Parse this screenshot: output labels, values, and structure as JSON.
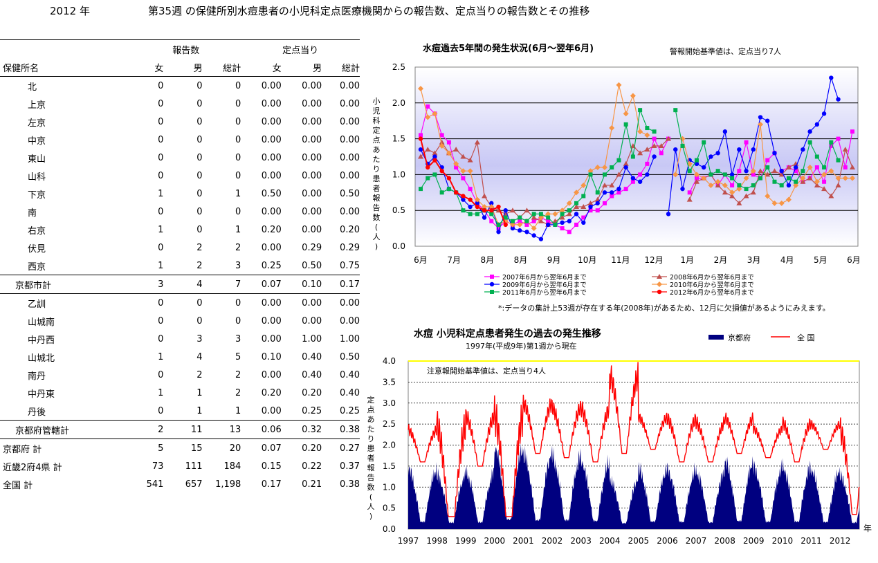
{
  "header": {
    "year": "2012 年",
    "title": "第35週 の保健所別水痘患者の小児科定点医療機関からの報告数、定点当りの報告数とその推移"
  },
  "table": {
    "group_headers": {
      "reports": "報告数",
      "per_site": "定点当り"
    },
    "columns": [
      "保健所名",
      "女",
      "男",
      "総計",
      "女",
      "男",
      "総計"
    ],
    "rows": [
      {
        "name": "北",
        "indent": 2,
        "v": [
          "0",
          "0",
          "0",
          "0.00",
          "0.00",
          "0.00"
        ]
      },
      {
        "name": "上京",
        "indent": 2,
        "v": [
          "0",
          "0",
          "0",
          "0.00",
          "0.00",
          "0.00"
        ]
      },
      {
        "name": "左京",
        "indent": 2,
        "v": [
          "0",
          "0",
          "0",
          "0.00",
          "0.00",
          "0.00"
        ]
      },
      {
        "name": "中京",
        "indent": 2,
        "v": [
          "0",
          "0",
          "0",
          "0.00",
          "0.00",
          "0.00"
        ]
      },
      {
        "name": "東山",
        "indent": 2,
        "v": [
          "0",
          "0",
          "0",
          "0.00",
          "0.00",
          "0.00"
        ]
      },
      {
        "name": "山科",
        "indent": 2,
        "v": [
          "0",
          "0",
          "0",
          "0.00",
          "0.00",
          "0.00"
        ]
      },
      {
        "name": "下京",
        "indent": 2,
        "v": [
          "1",
          "0",
          "1",
          "0.50",
          "0.00",
          "0.50"
        ]
      },
      {
        "name": "南",
        "indent": 2,
        "v": [
          "0",
          "0",
          "0",
          "0.00",
          "0.00",
          "0.00"
        ]
      },
      {
        "name": "右京",
        "indent": 2,
        "v": [
          "1",
          "0",
          "1",
          "0.20",
          "0.00",
          "0.20"
        ]
      },
      {
        "name": "伏見",
        "indent": 2,
        "v": [
          "0",
          "2",
          "2",
          "0.00",
          "0.29",
          "0.29"
        ]
      },
      {
        "name": "西京",
        "indent": 2,
        "v": [
          "1",
          "2",
          "3",
          "0.25",
          "0.50",
          "0.75"
        ]
      },
      {
        "name": "京都市計",
        "indent": 1,
        "v": [
          "3",
          "4",
          "7",
          "0.07",
          "0.10",
          "0.17"
        ],
        "border": "both"
      },
      {
        "name": "乙訓",
        "indent": 2,
        "v": [
          "0",
          "0",
          "0",
          "0.00",
          "0.00",
          "0.00"
        ]
      },
      {
        "name": "山城南",
        "indent": 2,
        "v": [
          "0",
          "0",
          "0",
          "0.00",
          "0.00",
          "0.00"
        ]
      },
      {
        "name": "中丹西",
        "indent": 2,
        "v": [
          "0",
          "3",
          "3",
          "0.00",
          "1.00",
          "1.00"
        ]
      },
      {
        "name": "山城北",
        "indent": 2,
        "v": [
          "1",
          "4",
          "5",
          "0.10",
          "0.40",
          "0.50"
        ]
      },
      {
        "name": "南丹",
        "indent": 2,
        "v": [
          "0",
          "2",
          "2",
          "0.00",
          "0.40",
          "0.40"
        ]
      },
      {
        "name": "中丹東",
        "indent": 2,
        "v": [
          "1",
          "1",
          "2",
          "0.20",
          "0.20",
          "0.40"
        ]
      },
      {
        "name": "丹後",
        "indent": 2,
        "v": [
          "0",
          "1",
          "1",
          "0.00",
          "0.25",
          "0.25"
        ]
      },
      {
        "name": "京都府管轄計",
        "indent": 1,
        "v": [
          "2",
          "11",
          "13",
          "0.06",
          "0.32",
          "0.38"
        ],
        "border": "both"
      },
      {
        "name": "京都府 計",
        "indent": 0,
        "v": [
          "5",
          "15",
          "20",
          "0.07",
          "0.20",
          "0.27"
        ]
      },
      {
        "name": "近畿2府4県 計",
        "indent": 0,
        "v": [
          "73",
          "111",
          "184",
          "0.15",
          "0.22",
          "0.37"
        ]
      },
      {
        "name": "全国 計",
        "indent": 0,
        "v": [
          "541",
          "657",
          "1,198",
          "0.17",
          "0.21",
          "0.38"
        ]
      }
    ]
  },
  "chart1": {
    "title": "水痘過去5年間の発生状況(6月～翌年6月)",
    "note": "警報開始基準値は、定点当り7人",
    "footnote": "*:データの集計上53週が存在する年(2008年)があるため、12月に欠損値があるようにみえます。"
  },
  "chart2": {
    "title": "水痘 小児科定点患者発生の過去の発生推移",
    "subtitle": "1997年(平成9年)第1週から現在",
    "note": "注意報開始基準値は、定点当り4人"
  },
  "chart_data": [
    {
      "type": "line",
      "title": "水痘過去5年間の発生状況(6月～翌年6月)",
      "ylabel": "小児科定点あたり患者報告数(人)",
      "ylim": [
        0,
        2.5
      ],
      "yticks": [
        "0.0",
        "0.5",
        "1.0",
        "1.5",
        "2.0",
        "2.5"
      ],
      "xticks": [
        "6月",
        "7月",
        "8月",
        "8月",
        "9月",
        "10月",
        "11月",
        "12月",
        "1月",
        "2月",
        "3月",
        "4月",
        "5月",
        "6月"
      ],
      "grid": true,
      "legend_position": "bottom",
      "series": [
        {
          "name": "2007年6月から翌年6月まで",
          "color": "#ff00ff",
          "marker": "square",
          "values": [
            1.55,
            1.95,
            1.85,
            1.55,
            1.45,
            1.1,
            0.95,
            0.8,
            0.6,
            0.5,
            0.35,
            0.25,
            0.35,
            0.3,
            0.35,
            0.3,
            0.35,
            0.4,
            0.35,
            0.3,
            0.25,
            0.2,
            0.3,
            0.4,
            0.5,
            0.5,
            0.6,
            0.7,
            0.75,
            0.8,
            0.9,
            1.0,
            1.15,
            1.5,
            1.3,
            1.5,
            null,
            null,
            0.75,
            0.95,
            0.95,
            1.0,
            0.85,
            1.0,
            0.85,
            1.05,
            1.45,
            1.0,
            0.95,
            1.2,
            1.3,
            1.05,
            1.1,
            1.05,
            0.9,
            0.95,
            1.1,
            0.9,
            1.4,
            1.5,
            1.1,
            1.6
          ]
        },
        {
          "name": "2008年6月から翌年6月まで",
          "color": "#c0504d",
          "marker": "triangle",
          "values": [
            1.25,
            1.35,
            1.3,
            1.45,
            1.3,
            1.35,
            1.25,
            1.2,
            1.45,
            0.7,
            0.55,
            0.5,
            0.45,
            0.5,
            0.4,
            0.5,
            0.4,
            0.35,
            0.3,
            0.35,
            0.4,
            0.45,
            0.55,
            0.55,
            0.6,
            0.65,
            0.85,
            0.85,
            1.0,
            1.15,
            1.4,
            1.3,
            1.35,
            1.4,
            1.4,
            1.5,
            null,
            null,
            0.65,
            0.9,
            0.95,
            1.0,
            0.85,
            0.75,
            0.7,
            0.6,
            0.7,
            0.75,
            1.05,
            1.0,
            1.05,
            1.0,
            1.1,
            1.15,
            0.9,
            0.95,
            0.85,
            0.8,
            0.7,
            0.85,
            1.35,
            1.1
          ]
        },
        {
          "name": "2009年6月から翌年6月まで",
          "color": "#0000ff",
          "marker": "circle",
          "values": [
            1.35,
            1.15,
            1.25,
            1.1,
            0.8,
            0.75,
            0.65,
            0.55,
            0.6,
            0.4,
            0.6,
            0.2,
            0.5,
            0.25,
            0.22,
            0.2,
            0.15,
            0.1,
            0.3,
            0.3,
            0.33,
            0.35,
            0.45,
            0.33,
            0.55,
            0.6,
            0.75,
            0.75,
            0.8,
            1.1,
            0.95,
            0.9,
            1.0,
            1.25,
            null,
            0.45,
            1.35,
            0.8,
            1.2,
            1.15,
            1.1,
            1.25,
            1.3,
            1.6,
            1.0,
            1.35,
            1.05,
            1.35,
            1.8,
            1.75,
            1.3,
            1.05,
            0.85,
            1.1,
            1.35,
            1.6,
            1.7,
            1.85,
            2.35,
            2.05
          ]
        },
        {
          "name": "2010年6月から翌年6月まで",
          "color": "#f79646",
          "marker": "diamond",
          "values": [
            2.2,
            1.8,
            1.85,
            1.4,
            1.3,
            1.15,
            1.05,
            1.05,
            0.65,
            0.55,
            0.55,
            0.3,
            0.35,
            0.3,
            0.3,
            0.35,
            0.25,
            0.4,
            0.45,
            0.45,
            0.5,
            0.6,
            0.75,
            0.85,
            1.05,
            1.1,
            1.1,
            1.65,
            2.25,
            1.85,
            2.1,
            1.6,
            1.55,
            null,
            null,
            null,
            1.0,
            1.5,
            1.15,
            1.0,
            0.95,
            0.85,
            0.9,
            0.85,
            0.75,
            0.8,
            0.95,
            1.05,
            1.7,
            0.7,
            0.6,
            0.6,
            0.65,
            0.85,
            0.95,
            1.1,
            0.9,
            1.0,
            1.05,
            0.95,
            0.95,
            0.95
          ]
        },
        {
          "name": "2011年6月から翌年6月まで",
          "color": "#00b050",
          "marker": "square",
          "values": [
            0.8,
            0.95,
            1.0,
            0.75,
            0.8,
            0.75,
            0.5,
            0.45,
            0.45,
            0.5,
            0.45,
            0.3,
            0.4,
            0.35,
            0.4,
            0.35,
            0.45,
            0.45,
            0.4,
            0.3,
            0.45,
            0.5,
            0.6,
            0.7,
            1.0,
            0.75,
            1.0,
            1.1,
            1.2,
            1.7,
            1.25,
            1.9,
            1.65,
            1.6,
            null,
            null,
            1.9,
            1.4,
            1.05,
            1.2,
            1.45,
            1.0,
            1.05,
            1.0,
            0.95,
            0.85,
            0.8,
            0.85,
            0.95,
            1.1,
            0.9,
            0.85,
            0.95,
            0.9,
            1.05,
            1.45,
            1.25,
            1.1,
            1.45,
            1.2
          ]
        },
        {
          "name": "2012年6月から翌年6月まで",
          "color": "#ff0000",
          "marker": "circle",
          "values": [
            1.5,
            1.1,
            1.2,
            1.05,
            0.95,
            0.75,
            0.7,
            0.65,
            0.55,
            0.5,
            0.5,
            0.55,
            0.3
          ]
        }
      ]
    },
    {
      "type": "area",
      "title": "水痘 小児科定点患者発生の過去の発生推移",
      "ylabel": "定点あたり患者報告数(人)",
      "ylim": [
        0,
        4.0
      ],
      "yticks": [
        "0.0",
        "0.5",
        "1.0",
        "1.5",
        "2.0",
        "2.5",
        "3.0",
        "3.5",
        "4.0"
      ],
      "xticks": [
        "1997",
        "1998",
        "1999",
        "2000",
        "2001",
        "2002",
        "2003",
        "2004",
        "2005",
        "2006",
        "2007",
        "2008",
        "2009",
        "2010",
        "2011",
        "2012"
      ],
      "xunit": "年",
      "x_range": [
        1997.0,
        2012.67
      ],
      "threshold": 4.0,
      "series": [
        {
          "name": "京都府",
          "color": "#000080",
          "yearly_peak": [
            1.7,
            1.5,
            1.6,
            2.3,
            2.1,
            2.05,
            1.9,
            1.4,
            1.7,
            1.65,
            1.6,
            1.9,
            1.7,
            1.75,
            1.65,
            1.5
          ]
        },
        {
          "name": "全 国",
          "color": "#ff0000",
          "yearly_peak": [
            2.5,
            2.9,
            2.9,
            3.2,
            3.2,
            3.1,
            3.1,
            4.0,
            2.8,
            2.8,
            2.7,
            2.8,
            2.5,
            2.7,
            2.6,
            2.7
          ],
          "yearly_trough": [
            1.6,
            0.0,
            1.5,
            0.0,
            1.8,
            1.7,
            1.6,
            1.8,
            1.9,
            1.6,
            1.6,
            1.8,
            1.7,
            1.6,
            1.9,
            0.35
          ]
        }
      ]
    }
  ]
}
